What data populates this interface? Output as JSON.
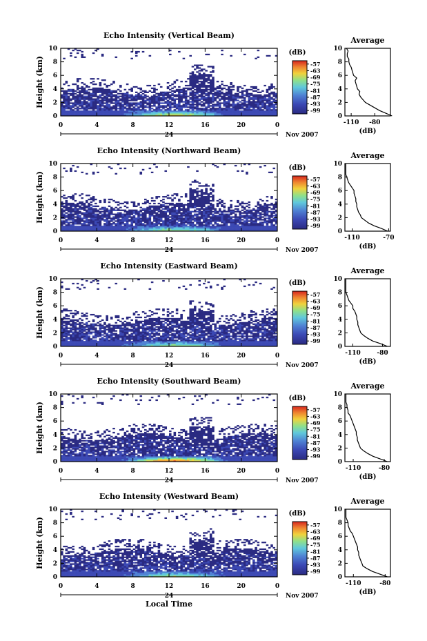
{
  "chart_data": {
    "type": "heatmap",
    "panels": [
      {
        "title": "Echo Intensity (Vertical Beam)",
        "avg_xticks": [
          "-110",
          "-80"
        ],
        "avg_xlim": [
          -118,
          -60
        ],
        "profile": [
          [
            0,
            -58
          ],
          [
            0.4,
            -66
          ],
          [
            0.8,
            -74
          ],
          [
            1.2,
            -80
          ],
          [
            1.6,
            -86
          ],
          [
            2,
            -92
          ],
          [
            2.4,
            -95
          ],
          [
            2.8,
            -98
          ],
          [
            3.2,
            -100
          ],
          [
            3.6,
            -99
          ],
          [
            4,
            -102
          ],
          [
            4.4,
            -103
          ],
          [
            4.8,
            -104
          ],
          [
            5.2,
            -105
          ],
          [
            5.6,
            -103
          ],
          [
            6,
            -107
          ],
          [
            6.4,
            -108
          ],
          [
            6.8,
            -109
          ],
          [
            7.2,
            -110
          ],
          [
            7.6,
            -112
          ],
          [
            8,
            -113
          ],
          [
            8.4,
            -113
          ],
          [
            8.8,
            -115
          ],
          [
            9.2,
            -115
          ],
          [
            9.6,
            -114
          ],
          [
            10,
            -116
          ]
        ]
      },
      {
        "title": "Echo Intensity (Northward Beam)",
        "avg_xticks": [
          "-110",
          "-70"
        ],
        "avg_xlim": [
          -118,
          -68
        ],
        "profile": [
          [
            0,
            -71
          ],
          [
            0.4,
            -78
          ],
          [
            0.8,
            -86
          ],
          [
            1.2,
            -92
          ],
          [
            1.6,
            -96
          ],
          [
            2,
            -100
          ],
          [
            2.4,
            -101
          ],
          [
            2.8,
            -103
          ],
          [
            3.2,
            -104
          ],
          [
            3.6,
            -105
          ],
          [
            4,
            -105
          ],
          [
            4.4,
            -106
          ],
          [
            4.8,
            -106
          ],
          [
            5.2,
            -107
          ],
          [
            5.6,
            -108
          ],
          [
            6,
            -108
          ],
          [
            6.4,
            -110
          ],
          [
            6.8,
            -112
          ],
          [
            7.2,
            -114
          ],
          [
            7.6,
            -115
          ],
          [
            8,
            -116
          ],
          [
            8.4,
            -117
          ],
          [
            8.8,
            -117
          ],
          [
            9.2,
            -117
          ],
          [
            9.6,
            -117
          ],
          [
            10,
            -117
          ]
        ]
      },
      {
        "title": "Echo Intensity (Eastward Beam)",
        "avg_xticks": [
          "-110",
          "-80"
        ],
        "avg_xlim": [
          -118,
          -72
        ],
        "profile": [
          [
            0,
            -75
          ],
          [
            0.4,
            -82
          ],
          [
            0.8,
            -90
          ],
          [
            1.2,
            -95
          ],
          [
            1.6,
            -99
          ],
          [
            2,
            -102
          ],
          [
            2.4,
            -103
          ],
          [
            2.8,
            -104
          ],
          [
            3.2,
            -105
          ],
          [
            3.6,
            -105
          ],
          [
            4,
            -106
          ],
          [
            4.4,
            -106
          ],
          [
            4.8,
            -107
          ],
          [
            5.2,
            -108
          ],
          [
            5.6,
            -110
          ],
          [
            6,
            -110
          ],
          [
            6.4,
            -112
          ],
          [
            6.8,
            -114
          ],
          [
            7.2,
            -115
          ],
          [
            7.6,
            -116
          ],
          [
            8,
            -117
          ],
          [
            8.4,
            -117
          ],
          [
            8.8,
            -117
          ],
          [
            9.2,
            -117
          ],
          [
            9.6,
            -117
          ],
          [
            10,
            -117
          ]
        ]
      },
      {
        "title": "Echo Intensity (Southward Beam)",
        "avg_xticks": [
          "-110",
          "-80"
        ],
        "avg_xlim": [
          -118,
          -74
        ],
        "profile": [
          [
            0,
            -77
          ],
          [
            0.4,
            -84
          ],
          [
            0.8,
            -91
          ],
          [
            1.2,
            -96
          ],
          [
            1.6,
            -100
          ],
          [
            2,
            -103
          ],
          [
            2.4,
            -104
          ],
          [
            2.8,
            -105
          ],
          [
            3.2,
            -106
          ],
          [
            3.6,
            -106
          ],
          [
            4,
            -107
          ],
          [
            4.4,
            -107
          ],
          [
            4.8,
            -108
          ],
          [
            5.2,
            -109
          ],
          [
            5.6,
            -110
          ],
          [
            6,
            -111
          ],
          [
            6.4,
            -112
          ],
          [
            6.8,
            -113
          ],
          [
            7.2,
            -115
          ],
          [
            7.6,
            -115
          ],
          [
            8,
            -116
          ],
          [
            8.4,
            -116
          ],
          [
            8.8,
            -117
          ],
          [
            9.2,
            -117
          ],
          [
            9.6,
            -117
          ],
          [
            10,
            -117
          ]
        ]
      },
      {
        "title": "Echo Intensity (Westward Beam)",
        "avg_xticks": [
          "-110",
          "-80"
        ],
        "avg_xlim": [
          -118,
          -75
        ],
        "profile": [
          [
            0,
            -78
          ],
          [
            0.4,
            -85
          ],
          [
            0.8,
            -92
          ],
          [
            1.2,
            -97
          ],
          [
            1.6,
            -101
          ],
          [
            2,
            -102
          ],
          [
            2.4,
            -103
          ],
          [
            2.8,
            -104
          ],
          [
            3.2,
            -105
          ],
          [
            3.6,
            -105
          ],
          [
            4,
            -106
          ],
          [
            4.4,
            -106
          ],
          [
            4.8,
            -107
          ],
          [
            5.2,
            -108
          ],
          [
            5.6,
            -109
          ],
          [
            6,
            -110
          ],
          [
            6.4,
            -111
          ],
          [
            6.8,
            -113
          ],
          [
            7.2,
            -114
          ],
          [
            7.6,
            -115
          ],
          [
            8,
            -115
          ],
          [
            8.4,
            -116
          ],
          [
            8.8,
            -117
          ],
          [
            9.2,
            -117
          ],
          [
            9.6,
            -117
          ],
          [
            10,
            -117
          ]
        ]
      }
    ],
    "ylabel": "Height (km)",
    "xlabel": "Local Time",
    "yticks": [
      "0",
      "2",
      "4",
      "6",
      "8",
      "10"
    ],
    "ylim": [
      0,
      10
    ],
    "xticks": [
      "0",
      "4",
      "8",
      "12",
      "16",
      "20",
      "0"
    ],
    "xlim": [
      0,
      24
    ],
    "date_mark": "24",
    "month_label": "Nov 2007",
    "colorbar_unit": "(dB)",
    "colorbar_ticks": [
      "-57",
      "-63",
      "-69",
      "-75",
      "-81",
      "-87",
      "-93",
      "-99"
    ],
    "colorbar_range": [
      -102,
      -54
    ],
    "avg_title": "Average",
    "avg_xlabel": "(dB)",
    "colors": [
      "#2a2a82",
      "#3b48b4",
      "#4f82d4",
      "#60c8dc",
      "#8fe08a",
      "#f0d23c",
      "#ef8630",
      "#d7261e"
    ]
  }
}
